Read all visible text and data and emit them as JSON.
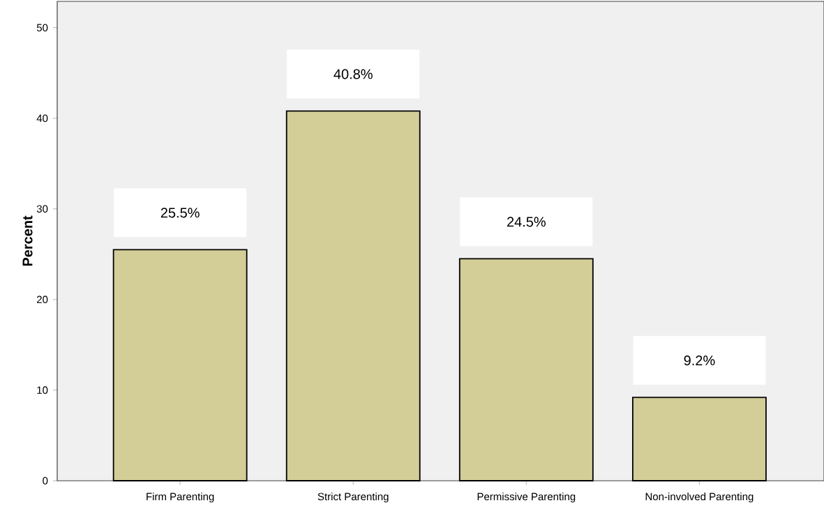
{
  "chart_data": {
    "type": "bar",
    "ylabel": "Percent",
    "categories": [
      "Firm Parenting",
      "Strict Parenting",
      "Permissive Parenting",
      "Non-involved Parenting"
    ],
    "values": [
      25.5,
      40.8,
      24.5,
      9.2
    ],
    "value_labels": [
      "25.5%",
      "40.8%",
      "24.5%",
      "9.2%"
    ],
    "color": "#d3ce98",
    "ylim": [
      0,
      52.9
    ],
    "yticks": [
      0,
      10,
      20,
      30,
      40,
      50
    ]
  }
}
